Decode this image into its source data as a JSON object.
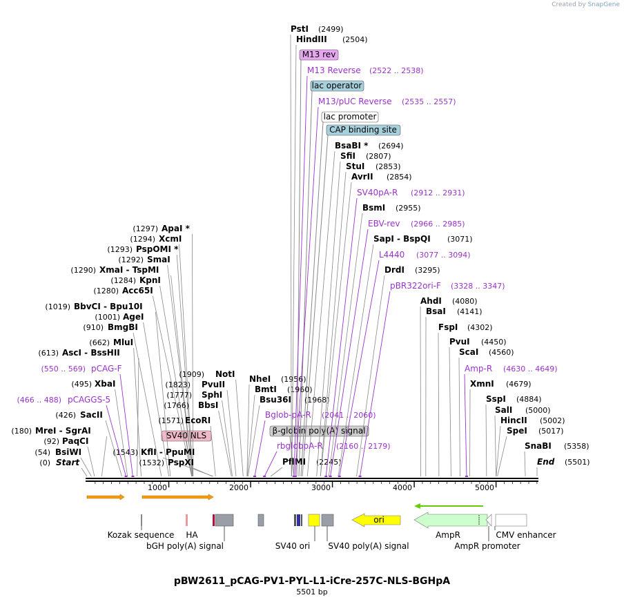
{
  "credit": {
    "prefix": "Created by",
    "brand": "SnapGene"
  },
  "title": "pBW2611_pCAG-PV1-PYL-L1-iCre-257C-NLS-BGHpA",
  "subtitle": "5501 bp",
  "length": 5501,
  "ticks": [
    "1000",
    "2000",
    "3000",
    "4000",
    "5000"
  ],
  "sites_left": [
    {
      "name": "Start",
      "pos": "(0)",
      "bp": 0,
      "italic": true
    },
    {
      "name": "BsiWI",
      "pos": "(54)",
      "bp": 54
    },
    {
      "name": "PaqCI",
      "pos": "(92)",
      "bp": 92
    },
    {
      "name": "MreI  -  SgrAI",
      "pos": "(180)",
      "bp": 180
    },
    {
      "name": "SacII",
      "pos": "(426)",
      "bp": 426
    },
    {
      "name": "XbaI",
      "pos": "(495)",
      "bp": 495
    },
    {
      "name": "AscI  -  BssHII",
      "pos": "(613)",
      "bp": 613
    },
    {
      "name": "MluI",
      "pos": "(662)",
      "bp": 662
    },
    {
      "name": "BmgBI",
      "pos": "(910)",
      "bp": 910
    },
    {
      "name": "AgeI",
      "pos": "(1001)",
      "bp": 1001
    },
    {
      "name": "BbvCI  -  Bpu10I",
      "pos": "(1019)",
      "bp": 1019
    },
    {
      "name": "Acc65I",
      "pos": "(1280)",
      "bp": 1280
    },
    {
      "name": "KpnI",
      "pos": "(1284)",
      "bp": 1284
    },
    {
      "name": "XmaI  -  TspMI",
      "pos": "(1290)",
      "bp": 1290
    },
    {
      "name": "SmaI",
      "pos": "(1292)",
      "bp": 1292
    },
    {
      "name": "PspOMI *",
      "pos": "(1293)",
      "bp": 1293
    },
    {
      "name": "XcmI",
      "pos": "(1294)",
      "bp": 1294
    },
    {
      "name": "ApaI *",
      "pos": "(1297)",
      "bp": 1297
    },
    {
      "name": "KflI  -  PpuMI",
      "pos": "(1543)",
      "bp": 1543
    },
    {
      "name": "PspXI",
      "pos": "(1532)",
      "bp": 1532
    }
  ],
  "sites_mid": [
    {
      "name": "EcoRI",
      "pos": "(1571)",
      "bp": 1571
    },
    {
      "name": "BbsI",
      "pos": "(1766)",
      "bp": 1766
    },
    {
      "name": "SphI",
      "pos": "(1777)",
      "bp": 1777
    },
    {
      "name": "PvuII",
      "pos": "(1823)",
      "bp": 1823
    },
    {
      "name": "NotI",
      "pos": "(1909)",
      "bp": 1909
    },
    {
      "name": "NheI",
      "pos": "(1956)",
      "bp": 1956
    },
    {
      "name": "BmtI",
      "pos": "(1960)",
      "bp": 1960
    },
    {
      "name": "Bsu36I",
      "pos": "(1968)",
      "bp": 1968
    },
    {
      "name": "PflMI",
      "pos": "(2245)",
      "bp": 2245
    }
  ],
  "sites_top": [
    {
      "name": "PstI",
      "pos": "(2499)",
      "bp": 2499
    },
    {
      "name": "HindIII",
      "pos": "(2504)",
      "bp": 2504
    },
    {
      "name": "BsaBI *",
      "pos": "(2694)",
      "bp": 2694
    },
    {
      "name": "SfiI",
      "pos": "(2807)",
      "bp": 2807
    },
    {
      "name": "StuI",
      "pos": "(2853)",
      "bp": 2853
    },
    {
      "name": "AvrII",
      "pos": "(2854)",
      "bp": 2854
    },
    {
      "name": "BsmI",
      "pos": "(2955)",
      "bp": 2955
    },
    {
      "name": "SapI  -  BspQI",
      "pos": "(3071)",
      "bp": 3071
    },
    {
      "name": "DrdI",
      "pos": "(3295)",
      "bp": 3295
    }
  ],
  "sites_right": [
    {
      "name": "AhdI",
      "pos": "(4080)",
      "bp": 4080
    },
    {
      "name": "BsaI",
      "pos": "(4141)",
      "bp": 4141
    },
    {
      "name": "FspI",
      "pos": "(4302)",
      "bp": 4302
    },
    {
      "name": "PvuI",
      "pos": "(4450)",
      "bp": 4450
    },
    {
      "name": "ScaI",
      "pos": "(4560)",
      "bp": 4560
    },
    {
      "name": "XmnI",
      "pos": "(4679)",
      "bp": 4679
    },
    {
      "name": "SspI",
      "pos": "(4884)",
      "bp": 4884
    },
    {
      "name": "SalI",
      "pos": "(5000)",
      "bp": 5000
    },
    {
      "name": "HincII",
      "pos": "(5002)",
      "bp": 5002
    },
    {
      "name": "SpeI",
      "pos": "(5017)",
      "bp": 5017
    },
    {
      "name": "SnaBI",
      "pos": "(5358)",
      "bp": 5358
    },
    {
      "name": "End",
      "pos": "(5501)",
      "bp": 5501,
      "italic": true
    }
  ],
  "primers": [
    {
      "name": "pCAGGS-5",
      "pos": "(466 .. 488)",
      "bp": 477
    },
    {
      "name": "pCAG-F",
      "pos": "(550 .. 569)",
      "bp": 560
    },
    {
      "name": "M13 Reverse",
      "pos": "(2522 .. 2538)",
      "bp": 2530
    },
    {
      "name": "M13/pUC Reverse",
      "pos": "(2535 .. 2557)",
      "bp": 2546
    },
    {
      "name": "Bglob-pA-R",
      "pos": "(2041 .. 2060)",
      "bp": 2050
    },
    {
      "name": "rbglobpA-R",
      "pos": "(2160 .. 2179)",
      "bp": 2170
    },
    {
      "name": "SV40pA-R",
      "pos": "(2912 .. 2931)",
      "bp": 2921
    },
    {
      "name": "EBV-rev",
      "pos": "(2966 .. 2985)",
      "bp": 2975
    },
    {
      "name": "L4440",
      "pos": "(3077 .. 3094)",
      "bp": 3085
    },
    {
      "name": "pBR322ori-F",
      "pos": "(3328 .. 3347)",
      "bp": 3337
    },
    {
      "name": "Amp-R",
      "pos": "(4630 .. 4649)",
      "bp": 4640
    }
  ],
  "boxed_features": [
    {
      "name": "SV40 NLS",
      "bp": 1560,
      "color": "#f0b8c8"
    },
    {
      "name": "β-globin poly(A) signal",
      "bp": 2250,
      "color": "#cfcfcf"
    },
    {
      "name": "M13 rev",
      "bp": 2522,
      "color": "#e6a6f0"
    },
    {
      "name": "lac operator",
      "bp": 2560,
      "color": "#a6d0dc"
    },
    {
      "name": "lac promoter",
      "bp": 2600,
      "color": "#ffffff"
    },
    {
      "name": "CAP binding site",
      "bp": 2620,
      "color": "#a6d0dc"
    }
  ],
  "features_bottom": [
    {
      "name": "Kozak sequence",
      "bp": 678
    },
    {
      "name": "HA",
      "bp": 1220
    },
    {
      "name": "bGH poly(A) signal",
      "bp": 1650
    },
    {
      "name": "SV40 ori",
      "bp": 2580
    },
    {
      "name": "ori",
      "bp": 3600,
      "color": "#ffff00"
    },
    {
      "name": "SV40 poly(A) signal",
      "bp": 2940
    },
    {
      "name": "AmpR",
      "bp": 4290,
      "color": "#ccffcc"
    },
    {
      "name": "AmpR promoter",
      "bp": 4870
    },
    {
      "name": "CMV enhancer",
      "bp": 5150
    }
  ],
  "colors": {
    "primer": "#9932cc",
    "orf": "#f39c12",
    "amp_orf": "#66cc00",
    "feature_gray": "#9a9ea6"
  }
}
